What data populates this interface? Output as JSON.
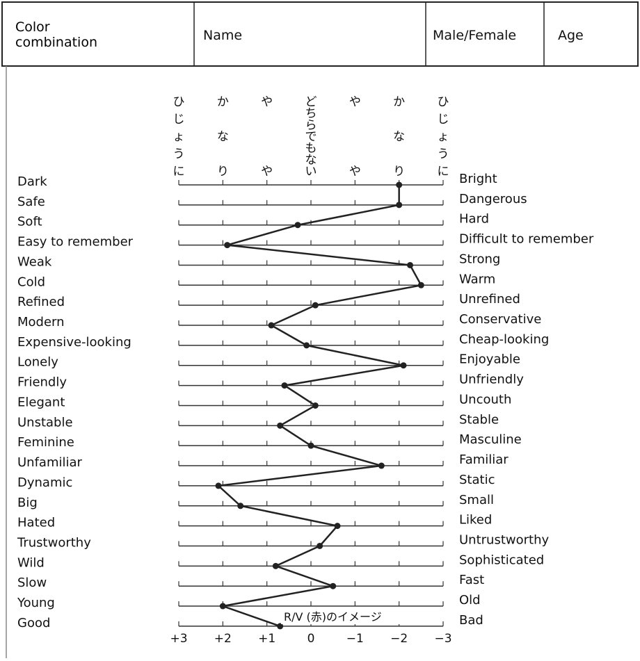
{
  "header": {
    "cells": [
      "Color combination",
      "Name",
      "Male/Female",
      "Age"
    ]
  },
  "chart_data": {
    "type": "profile",
    "scale_labels": [
      "ひじょうに",
      "かなり",
      "やや",
      "どちらでもない",
      "やや",
      "かなり",
      "ひじょうに"
    ],
    "left_labels": [
      "Dark",
      "Safe",
      "Soft",
      "Easy to  remember",
      "Weak",
      "Cold",
      "Refined",
      "Modern",
      "Expensive-looking",
      "Lonely",
      "Friendly",
      "Elegant",
      "Unstable",
      "Feminine",
      "Unfamiliar",
      "Dynamic",
      "Big",
      "Hated",
      "Trustworthy",
      "Wild",
      "Slow",
      "Young",
      "Good"
    ],
    "right_labels": [
      "Bright",
      "Dangerous",
      "Hard",
      "Difficult to remember",
      "Strong",
      "Warm",
      "Unrefined",
      "Conservative",
      "Cheap-looking",
      "Enjoyable",
      "Unfriendly",
      "Uncouth",
      "Stable",
      "Masculine",
      "Familiar",
      "Static",
      "Small",
      "Liked",
      "Untrustworthy",
      "Sophisticated",
      "Fast",
      "Old",
      "Bad"
    ],
    "values": [
      -2.0,
      -2.0,
      0.3,
      1.9,
      -2.25,
      -2.5,
      -0.1,
      0.9,
      0.1,
      -2.1,
      0.6,
      -0.1,
      0.7,
      0,
      -1.6,
      2.1,
      1.6,
      -0.6,
      -0.2,
      0.8,
      -0.5,
      2.0,
      0.7
    ],
    "xlim": [
      3,
      -3
    ],
    "xticks": [
      {
        "value": 3,
        "label": "+3"
      },
      {
        "value": 2,
        "label": "+2"
      },
      {
        "value": 1,
        "label": "+1"
      },
      0,
      {
        "value": -1,
        "label": "−1"
      },
      {
        "value": -2,
        "label": "−2"
      },
      {
        "value": -3,
        "label": "−3"
      }
    ],
    "annotation": "R/V (赤)のイメージ",
    "color": "#222222"
  }
}
